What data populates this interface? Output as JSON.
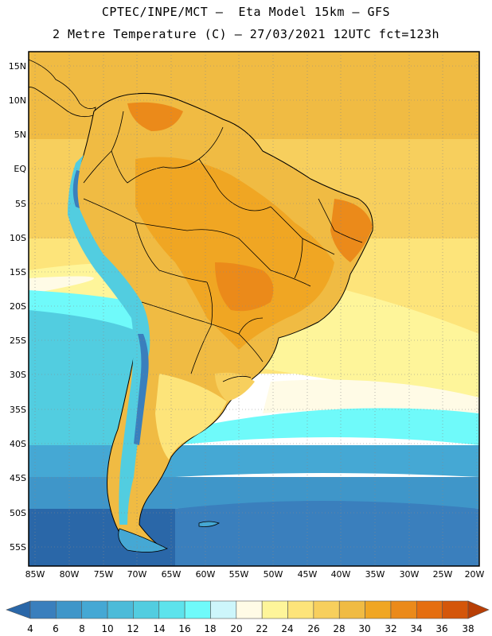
{
  "header": {
    "line1": "CPTEC/INPE/MCT –  Eta Model 15km – GFS",
    "line2": "2 Metre Temperature (C) – 27/03/2021 12UTC fct=123h"
  },
  "axes": {
    "lat_labels": [
      "15N",
      "10N",
      "5N",
      "EQ",
      "5S",
      "10S",
      "15S",
      "20S",
      "25S",
      "30S",
      "35S",
      "40S",
      "45S",
      "50S",
      "55S"
    ],
    "lon_labels": [
      "85W",
      "80W",
      "75W",
      "70W",
      "65W",
      "60W",
      "55W",
      "50W",
      "45W",
      "40W",
      "35W",
      "30W",
      "25W",
      "20W"
    ]
  },
  "colorbar": {
    "labels": [
      "4",
      "6",
      "8",
      "10",
      "12",
      "14",
      "16",
      "18",
      "20",
      "22",
      "24",
      "26",
      "28",
      "30",
      "32",
      "34",
      "36",
      "38"
    ],
    "colors": [
      "#2a67a8",
      "#3a7fbd",
      "#3f96c9",
      "#45a8d4",
      "#4cbbd9",
      "#52cde0",
      "#5de3ec",
      "#6ffafa",
      "#cdf6fb",
      "#fffbe6",
      "#fef59a",
      "#fde47a",
      "#f7cf5d",
      "#f0bb43",
      "#f0a623",
      "#eb8a1a",
      "#e56e10",
      "#d4560a",
      "#b83e05"
    ]
  },
  "map_colors": {
    "ocean_warm": "#fde47a",
    "ocean_tropical": "#f7cf5d",
    "ocean_mild": "#fef59a",
    "ocean_pale": "#fffbe6",
    "ocean_cool": "#6ffafa",
    "ocean_cold": "#45a8d4",
    "ocean_coldest": "#2a67a8",
    "land_hot": "#f0a623",
    "land_hotter": "#eb8a1a",
    "land_warm": "#f0bb43",
    "andes": "#52cde0",
    "andes_peak": "#3a7fbd",
    "border": "#000000"
  }
}
